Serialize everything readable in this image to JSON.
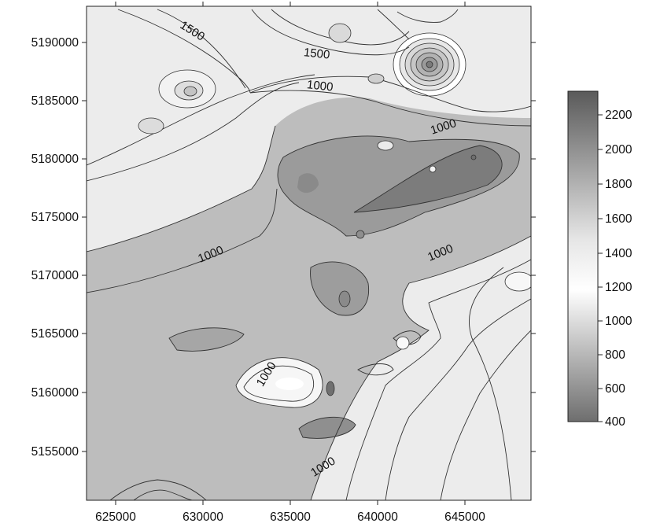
{
  "map": {
    "x_ticks": [
      "625000",
      "630000",
      "635000",
      "640000",
      "645000"
    ],
    "y_ticks": [
      "5190000",
      "5185000",
      "5180000",
      "5175000",
      "5170000",
      "5165000",
      "5160000",
      "5155000"
    ],
    "contour_labels": [
      "1500",
      "1500",
      "1000",
      "1000",
      "1000",
      "1000",
      "1000",
      "1000"
    ],
    "colorbar_ticks": [
      "2200",
      "2000",
      "1800",
      "1600",
      "1400",
      "1200",
      "1000",
      "800",
      "600",
      "400"
    ],
    "colors": {
      "high": "#5e5e5e",
      "mid": "#ffffff",
      "low": "#6a6a6a",
      "background_value": "#b3b3b3"
    }
  }
}
